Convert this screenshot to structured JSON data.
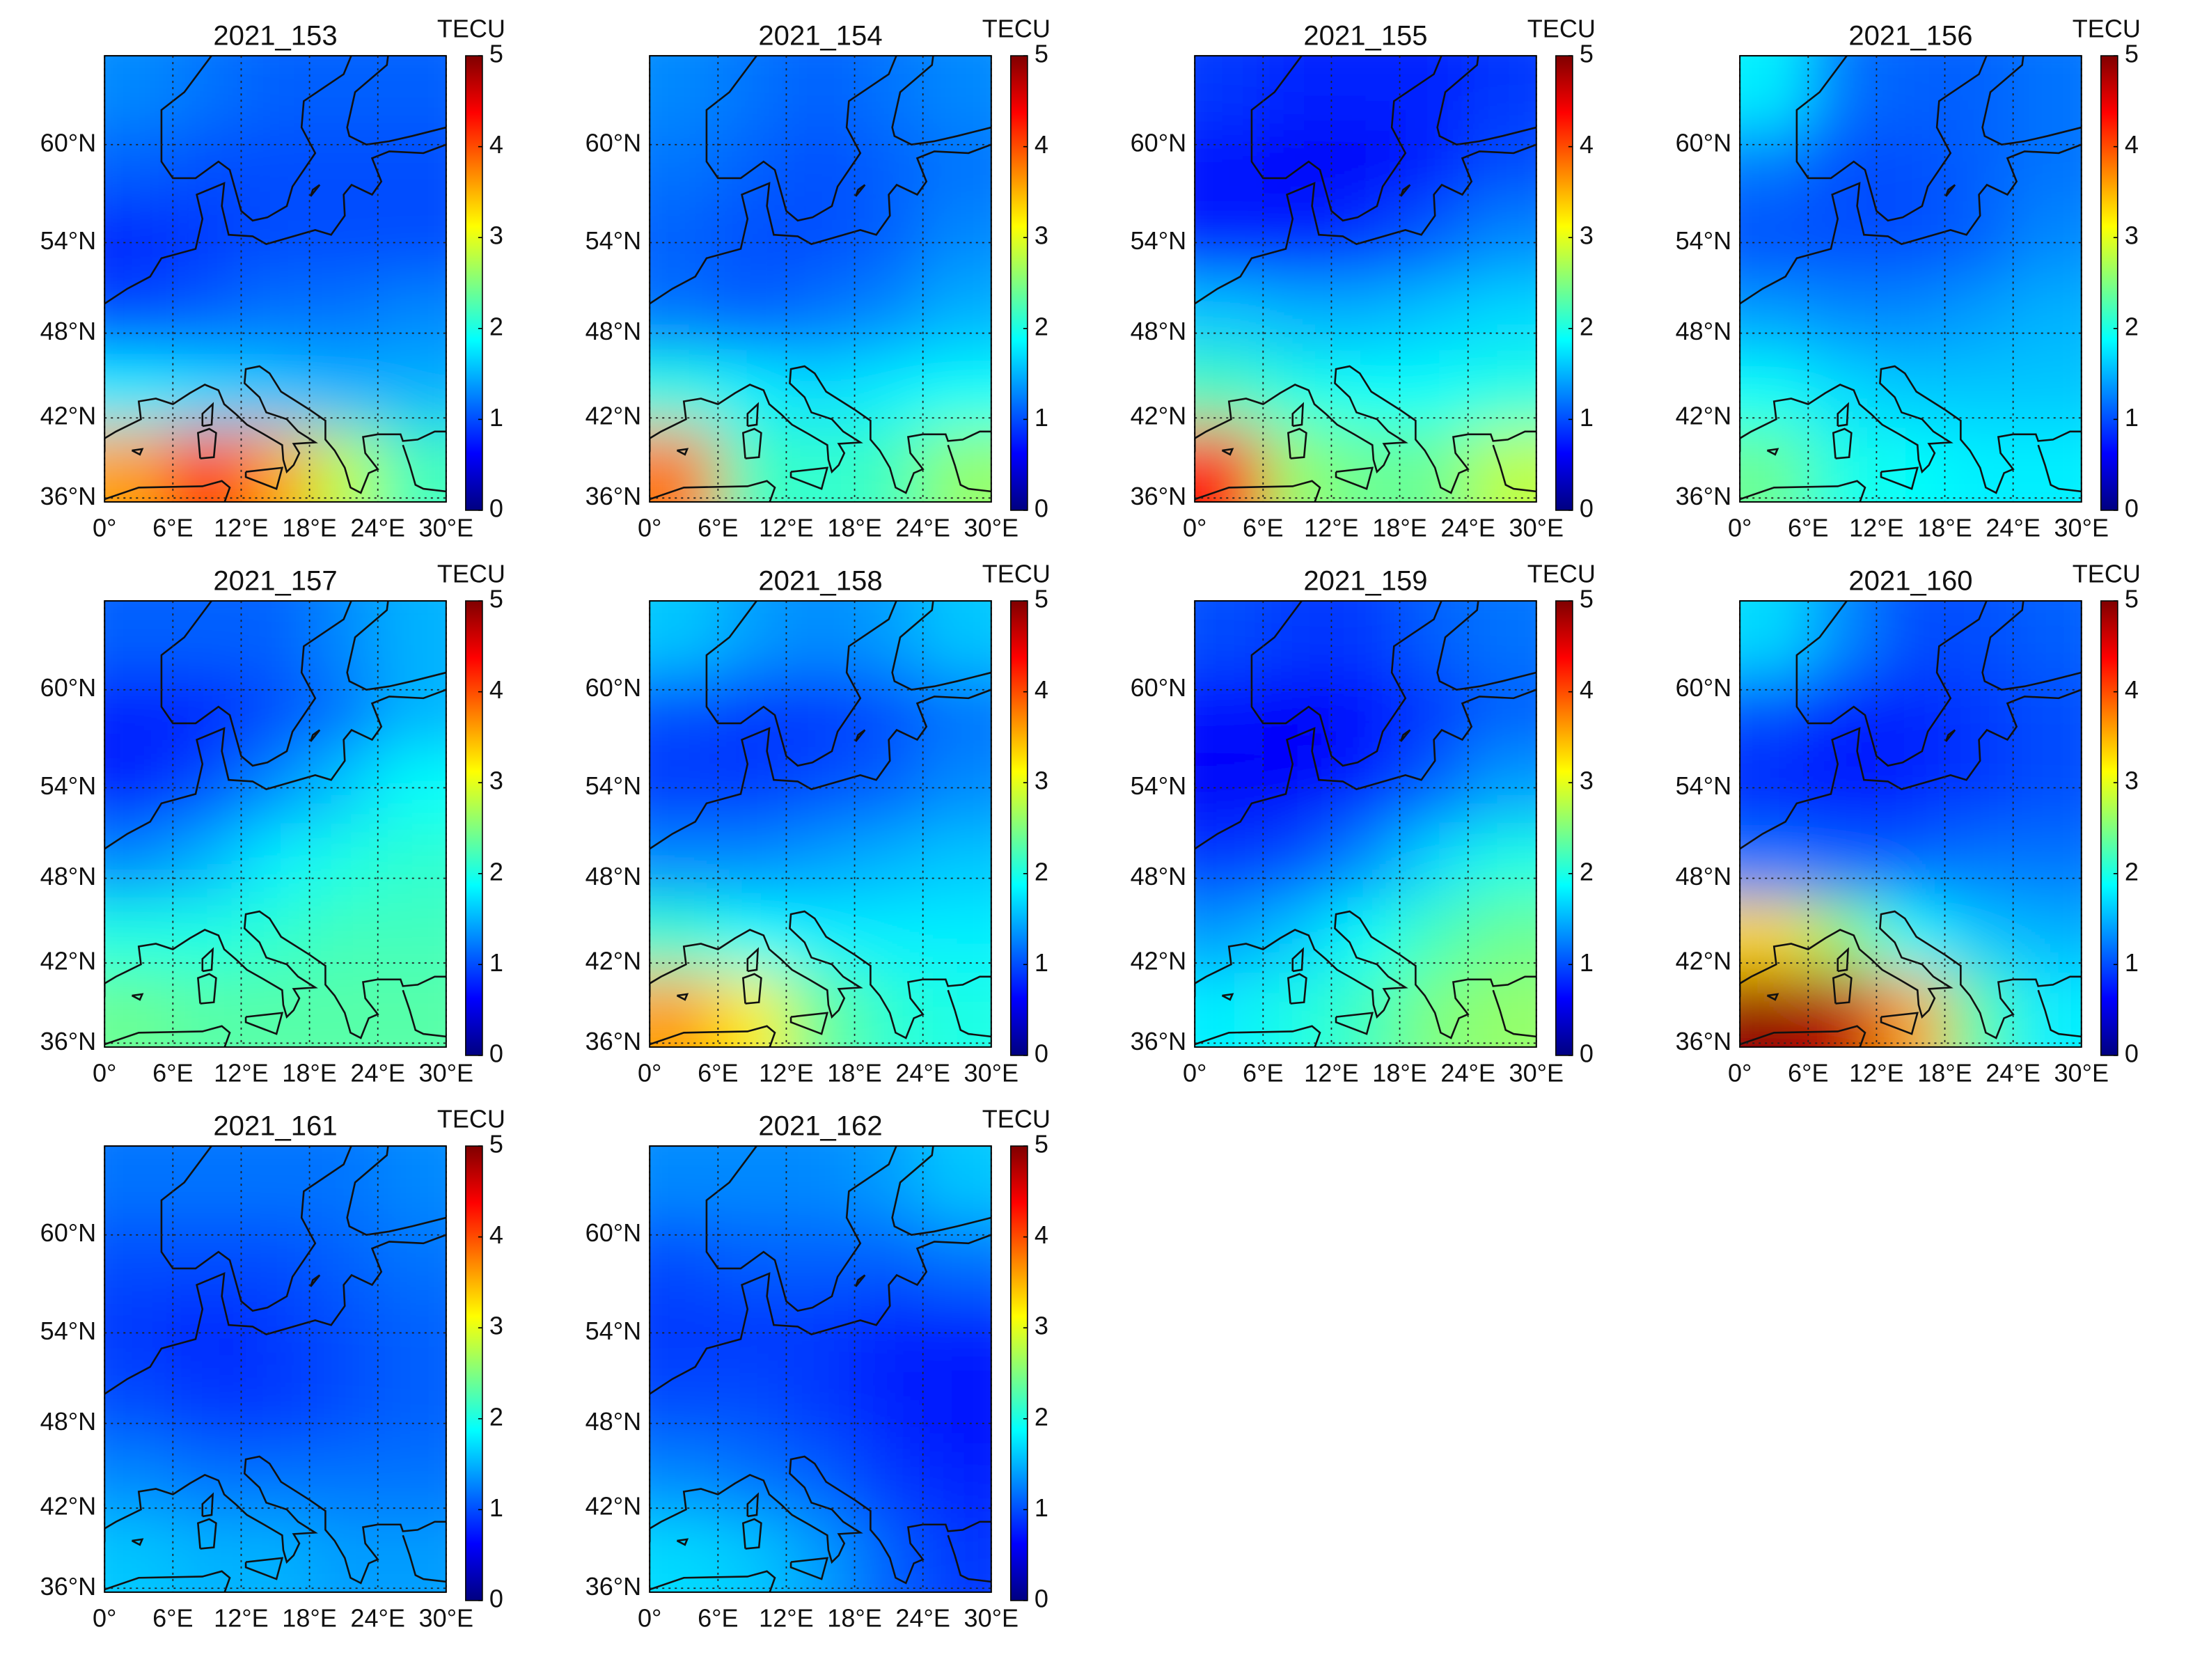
{
  "chart_data": [
    {
      "type": "heatmap",
      "title": "2021_153",
      "colorbar_label": "TECU",
      "colormap": "jet",
      "grid": true,
      "xlim": [
        0,
        30
      ],
      "xticks": [
        {
          "value": 0,
          "label": "0°"
        },
        {
          "value": 6,
          "label": "6°E"
        },
        {
          "value": 12,
          "label": "12°E"
        },
        {
          "value": 18,
          "label": "18°E"
        },
        {
          "value": 24,
          "label": "24°E"
        },
        {
          "value": 30,
          "label": "30°E"
        }
      ],
      "ylim": [
        35.7,
        65
      ],
      "yticks": [
        {
          "value": 36,
          "label": "36°N"
        },
        {
          "value": 42,
          "label": "42°N"
        },
        {
          "value": 48,
          "label": "48°N"
        },
        {
          "value": 54,
          "label": "54°N"
        },
        {
          "value": 60,
          "label": "60°N"
        }
      ],
      "clim": [
        0,
        5
      ],
      "cticks": [
        0,
        1,
        2,
        3,
        4,
        5
      ],
      "z": [
        [
          1.3,
          1.2,
          1.1,
          1.1,
          1.1
        ],
        [
          1.1,
          1.0,
          1.0,
          1.0,
          1.0
        ],
        [
          0.8,
          0.9,
          1.0,
          1.0,
          1.0
        ],
        [
          1.0,
          1.1,
          1.2,
          1.2,
          1.3
        ],
        [
          1.8,
          1.7,
          1.6,
          1.5,
          1.5
        ],
        [
          3.6,
          4.2,
          3.6,
          2.8,
          2.2
        ]
      ]
    },
    {
      "type": "heatmap",
      "title": "2021_154",
      "colorbar_label": "TECU",
      "colormap": "jet",
      "grid": true,
      "xlim": [
        0,
        30
      ],
      "xticks": [
        {
          "value": 0,
          "label": "0°"
        },
        {
          "value": 6,
          "label": "6°E"
        },
        {
          "value": 12,
          "label": "12°E"
        },
        {
          "value": 18,
          "label": "18°E"
        },
        {
          "value": 24,
          "label": "24°E"
        },
        {
          "value": 30,
          "label": "30°E"
        }
      ],
      "ylim": [
        35.7,
        65
      ],
      "yticks": [
        {
          "value": 36,
          "label": "36°N"
        },
        {
          "value": 42,
          "label": "42°N"
        },
        {
          "value": 48,
          "label": "48°N"
        },
        {
          "value": 54,
          "label": "54°N"
        },
        {
          "value": 60,
          "label": "60°N"
        }
      ],
      "clim": [
        0,
        5
      ],
      "cticks": [
        0,
        1,
        2,
        3,
        4,
        5
      ],
      "z": [
        [
          1.3,
          1.2,
          1.1,
          1.2,
          1.3
        ],
        [
          1.2,
          1.1,
          1.0,
          1.1,
          1.2
        ],
        [
          1.1,
          1.0,
          1.0,
          1.1,
          1.3
        ],
        [
          1.2,
          1.1,
          1.2,
          1.3,
          1.5
        ],
        [
          2.0,
          1.8,
          1.7,
          1.8,
          1.9
        ],
        [
          3.8,
          2.2,
          2.1,
          2.2,
          2.6
        ]
      ]
    },
    {
      "type": "heatmap",
      "title": "2021_155",
      "colorbar_label": "TECU",
      "colormap": "jet",
      "grid": true,
      "xlim": [
        0,
        30
      ],
      "xticks": [
        {
          "value": 0,
          "label": "0°"
        },
        {
          "value": 6,
          "label": "6°E"
        },
        {
          "value": 12,
          "label": "12°E"
        },
        {
          "value": 18,
          "label": "18°E"
        },
        {
          "value": 24,
          "label": "24°E"
        },
        {
          "value": 30,
          "label": "30°E"
        }
      ],
      "ylim": [
        35.7,
        65
      ],
      "yticks": [
        {
          "value": 36,
          "label": "36°N"
        },
        {
          "value": 42,
          "label": "42°N"
        },
        {
          "value": 48,
          "label": "48°N"
        },
        {
          "value": 54,
          "label": "54°N"
        },
        {
          "value": 60,
          "label": "60°N"
        }
      ],
      "clim": [
        0,
        5
      ],
      "cticks": [
        0,
        1,
        2,
        3,
        4,
        5
      ],
      "z": [
        [
          0.9,
          0.8,
          0.8,
          0.8,
          0.9
        ],
        [
          0.7,
          0.6,
          0.6,
          0.8,
          1.0
        ],
        [
          0.8,
          0.8,
          0.9,
          1.1,
          1.3
        ],
        [
          1.6,
          1.5,
          1.5,
          1.6,
          1.7
        ],
        [
          2.2,
          2.0,
          1.9,
          1.9,
          2.0
        ],
        [
          4.3,
          2.6,
          2.4,
          2.4,
          2.8
        ]
      ]
    },
    {
      "type": "heatmap",
      "title": "2021_156",
      "colorbar_label": "TECU",
      "colormap": "jet",
      "grid": true,
      "xlim": [
        0,
        30
      ],
      "xticks": [
        {
          "value": 0,
          "label": "0°"
        },
        {
          "value": 6,
          "label": "6°E"
        },
        {
          "value": 12,
          "label": "12°E"
        },
        {
          "value": 18,
          "label": "18°E"
        },
        {
          "value": 24,
          "label": "24°E"
        },
        {
          "value": 30,
          "label": "30°E"
        }
      ],
      "ylim": [
        35.7,
        65
      ],
      "yticks": [
        {
          "value": 36,
          "label": "36°N"
        },
        {
          "value": 42,
          "label": "42°N"
        },
        {
          "value": 48,
          "label": "48°N"
        },
        {
          "value": 54,
          "label": "54°N"
        },
        {
          "value": 60,
          "label": "60°N"
        }
      ],
      "clim": [
        0,
        5
      ],
      "cticks": [
        0,
        1,
        2,
        3,
        4,
        5
      ],
      "z": [
        [
          1.8,
          1.2,
          1.1,
          1.1,
          1.2
        ],
        [
          1.2,
          1.0,
          1.0,
          1.1,
          1.2
        ],
        [
          1.0,
          1.0,
          1.0,
          1.1,
          1.3
        ],
        [
          1.4,
          1.3,
          1.3,
          1.4,
          1.5
        ],
        [
          1.9,
          1.7,
          1.6,
          1.6,
          1.6
        ],
        [
          2.4,
          2.0,
          1.9,
          1.8,
          1.8
        ]
      ]
    },
    {
      "type": "heatmap",
      "title": "2021_157",
      "colorbar_label": "TECU",
      "colormap": "jet",
      "grid": true,
      "xlim": [
        0,
        30
      ],
      "xticks": [
        {
          "value": 0,
          "label": "0°"
        },
        {
          "value": 6,
          "label": "6°E"
        },
        {
          "value": 12,
          "label": "12°E"
        },
        {
          "value": 18,
          "label": "18°E"
        },
        {
          "value": 24,
          "label": "24°E"
        },
        {
          "value": 30,
          "label": "30°E"
        }
      ],
      "ylim": [
        35.7,
        65
      ],
      "yticks": [
        {
          "value": 36,
          "label": "36°N"
        },
        {
          "value": 42,
          "label": "42°N"
        },
        {
          "value": 48,
          "label": "48°N"
        },
        {
          "value": 54,
          "label": "54°N"
        },
        {
          "value": 60,
          "label": "60°N"
        }
      ],
      "clim": [
        0,
        5
      ],
      "cticks": [
        0,
        1,
        2,
        3,
        4,
        5
      ],
      "z": [
        [
          1.1,
          1.1,
          1.1,
          1.3,
          1.5
        ],
        [
          0.8,
          0.8,
          1.0,
          1.2,
          1.5
        ],
        [
          0.8,
          1.0,
          1.3,
          1.6,
          1.9
        ],
        [
          1.3,
          1.5,
          1.8,
          2.0,
          2.1
        ],
        [
          2.0,
          2.0,
          2.1,
          2.2,
          2.2
        ],
        [
          2.4,
          2.3,
          2.3,
          2.3,
          2.3
        ]
      ]
    },
    {
      "type": "heatmap",
      "title": "2021_158",
      "colorbar_label": "TECU",
      "colormap": "jet",
      "grid": true,
      "xlim": [
        0,
        30
      ],
      "xticks": [
        {
          "value": 0,
          "label": "0°"
        },
        {
          "value": 6,
          "label": "6°E"
        },
        {
          "value": 12,
          "label": "12°E"
        },
        {
          "value": 18,
          "label": "18°E"
        },
        {
          "value": 24,
          "label": "24°E"
        },
        {
          "value": 30,
          "label": "30°E"
        }
      ],
      "ylim": [
        35.7,
        65
      ],
      "yticks": [
        {
          "value": 36,
          "label": "36°N"
        },
        {
          "value": 42,
          "label": "42°N"
        },
        {
          "value": 48,
          "label": "48°N"
        },
        {
          "value": 54,
          "label": "54°N"
        },
        {
          "value": 60,
          "label": "60°N"
        }
      ],
      "clim": [
        0,
        5
      ],
      "cticks": [
        0,
        1,
        2,
        3,
        4,
        5
      ],
      "z": [
        [
          1.6,
          1.4,
          1.3,
          1.4,
          1.6
        ],
        [
          1.0,
          0.9,
          0.9,
          1.0,
          1.2
        ],
        [
          0.9,
          0.9,
          1.0,
          1.1,
          1.3
        ],
        [
          1.3,
          1.3,
          1.4,
          1.5,
          1.6
        ],
        [
          2.1,
          1.9,
          1.8,
          1.8,
          1.8
        ],
        [
          3.6,
          3.2,
          2.4,
          2.1,
          2.0
        ]
      ]
    },
    {
      "type": "heatmap",
      "title": "2021_159",
      "colorbar_label": "TECU",
      "colormap": "jet",
      "grid": true,
      "xlim": [
        0,
        30
      ],
      "xticks": [
        {
          "value": 0,
          "label": "0°"
        },
        {
          "value": 6,
          "label": "6°E"
        },
        {
          "value": 12,
          "label": "12°E"
        },
        {
          "value": 18,
          "label": "18°E"
        },
        {
          "value": 24,
          "label": "24°E"
        },
        {
          "value": 30,
          "label": "30°E"
        }
      ],
      "ylim": [
        35.7,
        65
      ],
      "yticks": [
        {
          "value": 36,
          "label": "36°N"
        },
        {
          "value": 42,
          "label": "42°N"
        },
        {
          "value": 48,
          "label": "48°N"
        },
        {
          "value": 54,
          "label": "54°N"
        },
        {
          "value": 60,
          "label": "60°N"
        }
      ],
      "clim": [
        0,
        5
      ],
      "cticks": [
        0,
        1,
        2,
        3,
        4,
        5
      ],
      "z": [
        [
          1.0,
          0.9,
          0.9,
          1.1,
          1.2
        ],
        [
          0.7,
          0.6,
          0.7,
          0.9,
          1.1
        ],
        [
          0.6,
          0.6,
          0.8,
          1.1,
          1.4
        ],
        [
          0.9,
          1.0,
          1.3,
          1.7,
          2.0
        ],
        [
          1.4,
          1.6,
          1.9,
          2.2,
          2.4
        ],
        [
          1.8,
          2.0,
          2.2,
          2.5,
          2.6
        ]
      ]
    },
    {
      "type": "heatmap",
      "title": "2021_160",
      "colorbar_label": "TECU",
      "colormap": "jet",
      "grid": true,
      "xlim": [
        0,
        30
      ],
      "xticks": [
        {
          "value": 0,
          "label": "0°"
        },
        {
          "value": 6,
          "label": "6°E"
        },
        {
          "value": 12,
          "label": "12°E"
        },
        {
          "value": 18,
          "label": "18°E"
        },
        {
          "value": 24,
          "label": "24°E"
        },
        {
          "value": 30,
          "label": "30°E"
        }
      ],
      "ylim": [
        35.7,
        65
      ],
      "yticks": [
        {
          "value": 36,
          "label": "36°N"
        },
        {
          "value": 42,
          "label": "42°N"
        },
        {
          "value": 48,
          "label": "48°N"
        },
        {
          "value": 54,
          "label": "54°N"
        },
        {
          "value": 60,
          "label": "60°N"
        }
      ],
      "clim": [
        0,
        5
      ],
      "cticks": [
        0,
        1,
        2,
        3,
        4,
        5
      ],
      "z": [
        [
          1.7,
          1.3,
          1.0,
          1.0,
          1.1
        ],
        [
          1.0,
          0.8,
          0.8,
          0.9,
          1.0
        ],
        [
          0.8,
          0.7,
          0.8,
          0.9,
          1.0
        ],
        [
          1.2,
          1.1,
          1.1,
          1.2,
          1.2
        ],
        [
          3.3,
          2.6,
          1.9,
          1.6,
          1.5
        ],
        [
          4.9,
          4.7,
          3.6,
          2.3,
          1.8
        ]
      ]
    },
    {
      "type": "heatmap",
      "title": "2021_161",
      "colorbar_label": "TECU",
      "colormap": "jet",
      "grid": true,
      "xlim": [
        0,
        30
      ],
      "xticks": [
        {
          "value": 0,
          "label": "0°"
        },
        {
          "value": 6,
          "label": "6°E"
        },
        {
          "value": 12,
          "label": "12°E"
        },
        {
          "value": 18,
          "label": "18°E"
        },
        {
          "value": 24,
          "label": "24°E"
        },
        {
          "value": 30,
          "label": "30°E"
        }
      ],
      "ylim": [
        35.7,
        65
      ],
      "yticks": [
        {
          "value": 36,
          "label": "36°N"
        },
        {
          "value": 42,
          "label": "42°N"
        },
        {
          "value": 48,
          "label": "48°N"
        },
        {
          "value": 54,
          "label": "54°N"
        },
        {
          "value": 60,
          "label": "60°N"
        }
      ],
      "clim": [
        0,
        5
      ],
      "cticks": [
        0,
        1,
        2,
        3,
        4,
        5
      ],
      "z": [
        [
          1.2,
          1.2,
          1.2,
          1.2,
          1.3
        ],
        [
          1.0,
          1.0,
          1.0,
          1.1,
          1.2
        ],
        [
          0.9,
          0.8,
          0.9,
          1.0,
          1.1
        ],
        [
          1.0,
          0.9,
          0.9,
          1.0,
          1.1
        ],
        [
          1.3,
          1.2,
          1.2,
          1.2,
          1.2
        ],
        [
          1.6,
          1.5,
          1.5,
          1.4,
          1.4
        ]
      ]
    },
    {
      "type": "heatmap",
      "title": "2021_162",
      "colorbar_label": "TECU",
      "colormap": "jet",
      "grid": true,
      "xlim": [
        0,
        30
      ],
      "xticks": [
        {
          "value": 0,
          "label": "0°"
        },
        {
          "value": 6,
          "label": "6°E"
        },
        {
          "value": 12,
          "label": "12°E"
        },
        {
          "value": 18,
          "label": "18°E"
        },
        {
          "value": 24,
          "label": "24°E"
        },
        {
          "value": 30,
          "label": "30°E"
        }
      ],
      "ylim": [
        35.7,
        65
      ],
      "yticks": [
        {
          "value": 36,
          "label": "36°N"
        },
        {
          "value": 42,
          "label": "42°N"
        },
        {
          "value": 48,
          "label": "48°N"
        },
        {
          "value": 54,
          "label": "54°N"
        },
        {
          "value": 60,
          "label": "60°N"
        }
      ],
      "clim": [
        0,
        5
      ],
      "cticks": [
        0,
        1,
        2,
        3,
        4,
        5
      ],
      "z": [
        [
          1.3,
          1.3,
          1.3,
          1.4,
          1.6
        ],
        [
          1.0,
          1.1,
          1.1,
          1.1,
          1.2
        ],
        [
          0.9,
          0.9,
          0.9,
          0.8,
          0.8
        ],
        [
          1.0,
          1.0,
          0.9,
          0.8,
          0.7
        ],
        [
          1.3,
          1.2,
          1.1,
          0.9,
          0.8
        ],
        [
          1.7,
          1.6,
          1.4,
          1.1,
          0.9
        ]
      ]
    }
  ]
}
